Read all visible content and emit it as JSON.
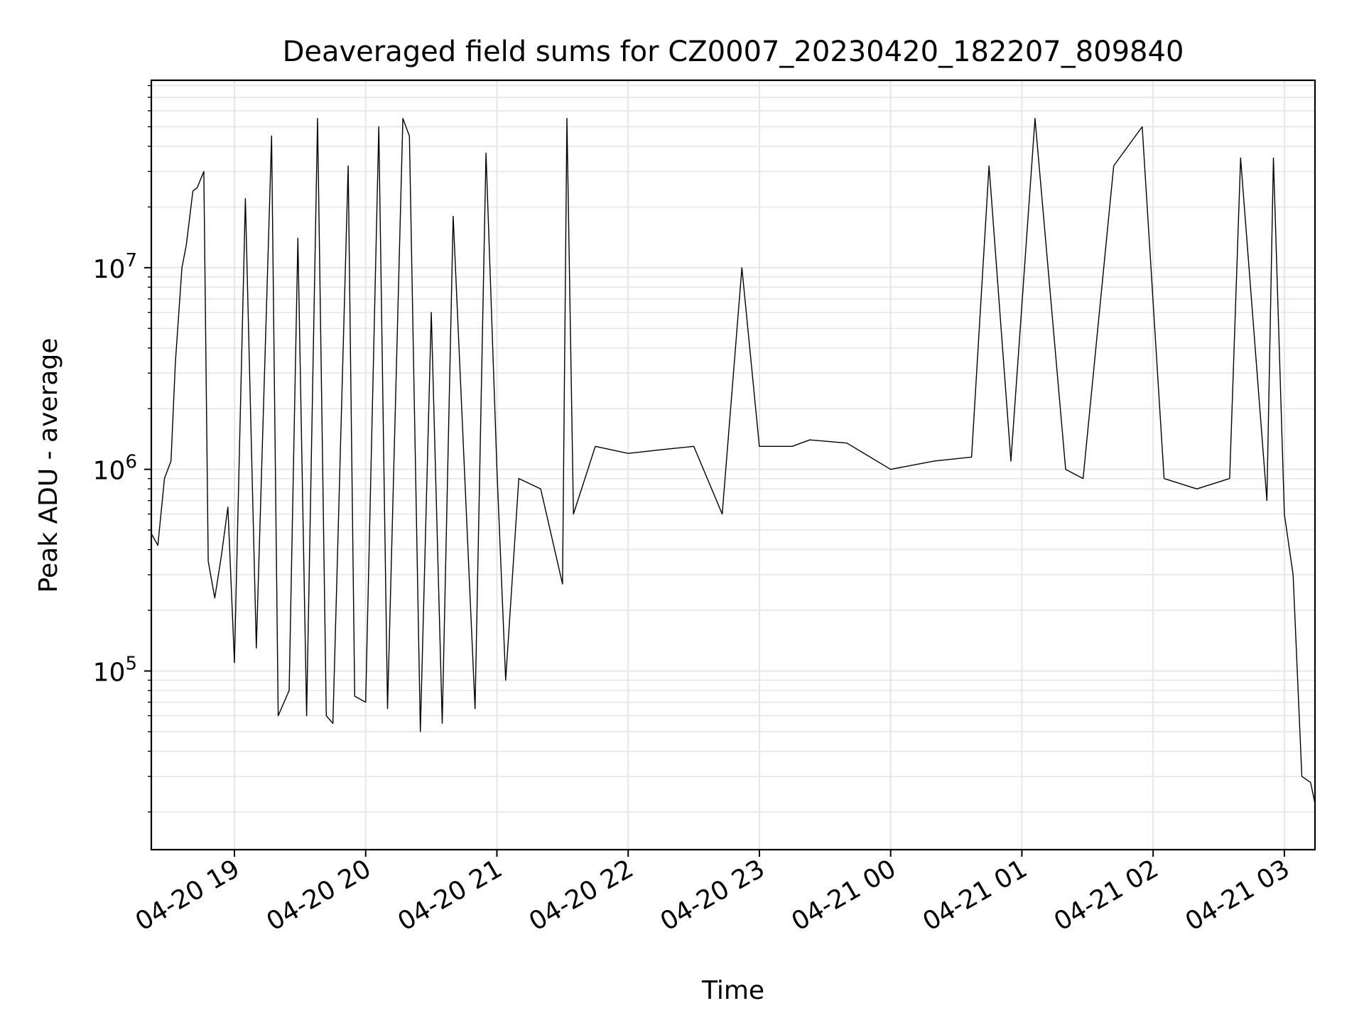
{
  "chart_data": {
    "type": "line",
    "title": "Deaveraged field sums for CZ0007_20230420_182207_809840",
    "xlabel": "Time",
    "ylabel": "Peak ADU - average",
    "y_scale": "log",
    "grid": true,
    "legend": "none",
    "line_color": "#000000",
    "xlim": [
      "2023-04-20 18:22",
      "2023-04-21 03:14"
    ],
    "ylim": [
      13000,
      85000000
    ],
    "x_ticks": [
      {
        "time": "2023-04-20 19:00",
        "label": "04-20 19"
      },
      {
        "time": "2023-04-20 20:00",
        "label": "04-20 20"
      },
      {
        "time": "2023-04-20 21:00",
        "label": "04-20 21"
      },
      {
        "time": "2023-04-20 22:00",
        "label": "04-20 22"
      },
      {
        "time": "2023-04-20 23:00",
        "label": "04-20 23"
      },
      {
        "time": "2023-04-21 00:00",
        "label": "04-21 00"
      },
      {
        "time": "2023-04-21 01:00",
        "label": "04-21 01"
      },
      {
        "time": "2023-04-21 02:00",
        "label": "04-21 02"
      },
      {
        "time": "2023-04-21 03:00",
        "label": "04-21 03"
      }
    ],
    "y_ticks": [
      {
        "value": 100000,
        "base": "10",
        "exp": "5"
      },
      {
        "value": 1000000,
        "base": "10",
        "exp": "6"
      },
      {
        "value": 10000000,
        "base": "10",
        "exp": "7"
      }
    ],
    "series": [
      {
        "x": [
          "2023-04-20 18:22",
          "2023-04-20 18:25",
          "2023-04-20 18:28",
          "2023-04-20 18:31",
          "2023-04-20 18:33",
          "2023-04-20 18:36",
          "2023-04-20 18:38",
          "2023-04-20 18:41",
          "2023-04-20 18:43",
          "2023-04-20 18:46",
          "2023-04-20 18:48",
          "2023-04-20 18:51",
          "2023-04-20 18:54",
          "2023-04-20 18:57",
          "2023-04-20 19:00",
          "2023-04-20 19:05",
          "2023-04-20 19:10",
          "2023-04-20 19:17",
          "2023-04-20 19:20",
          "2023-04-20 19:25",
          "2023-04-20 19:29",
          "2023-04-20 19:33",
          "2023-04-20 19:38",
          "2023-04-20 19:42",
          "2023-04-20 19:45",
          "2023-04-20 19:52",
          "2023-04-20 19:55",
          "2023-04-20 20:00",
          "2023-04-20 20:06",
          "2023-04-20 20:10",
          "2023-04-20 20:17",
          "2023-04-20 20:20",
          "2023-04-20 20:25",
          "2023-04-20 20:30",
          "2023-04-20 20:35",
          "2023-04-20 20:40",
          "2023-04-20 20:50",
          "2023-04-20 20:55",
          "2023-04-20 21:00",
          "2023-04-20 21:04",
          "2023-04-20 21:10",
          "2023-04-20 21:20",
          "2023-04-20 21:30",
          "2023-04-20 21:32",
          "2023-04-20 21:35",
          "2023-04-20 21:45",
          "2023-04-20 22:00",
          "2023-04-20 22:15",
          "2023-04-20 22:30",
          "2023-04-20 22:43",
          "2023-04-20 22:52",
          "2023-04-20 23:00",
          "2023-04-20 23:15",
          "2023-04-20 23:23",
          "2023-04-20 23:40",
          "2023-04-21 00:00",
          "2023-04-21 00:20",
          "2023-04-21 00:37",
          "2023-04-21 00:45",
          "2023-04-21 00:55",
          "2023-04-21 01:06",
          "2023-04-21 01:20",
          "2023-04-21 01:28",
          "2023-04-21 01:42",
          "2023-04-21 01:55",
          "2023-04-21 02:05",
          "2023-04-21 02:20",
          "2023-04-21 02:35",
          "2023-04-21 02:40",
          "2023-04-21 02:52",
          "2023-04-21 02:55",
          "2023-04-21 03:00",
          "2023-04-21 03:04",
          "2023-04-21 03:08",
          "2023-04-21 03:12",
          "2023-04-21 03:14"
        ],
        "y": [
          480000,
          420000,
          900000,
          1100000,
          3400000,
          10000000,
          13000000,
          24000000,
          25000000,
          30000000,
          350000,
          230000,
          370000,
          650000,
          110000,
          22000000,
          130000,
          45000000,
          60000,
          80000,
          14000000,
          60000,
          55000000,
          60000,
          55000,
          32000000,
          75000,
          70000,
          50000000,
          65000,
          55000000,
          45000000,
          50000,
          6000000,
          55000,
          18000000,
          65000,
          37000000,
          1000000,
          90000,
          900000,
          800000,
          270000,
          55000000,
          600000,
          1300000,
          1200000,
          1250000,
          1300000,
          600000,
          10000000,
          1300000,
          1300000,
          1400000,
          1350000,
          1000000,
          1100000,
          1150000,
          32000000,
          1100000,
          55000000,
          1000000,
          900000,
          32000000,
          50000000,
          900000,
          800000,
          900000,
          35000000,
          700000,
          35000000,
          600000,
          300000,
          30000,
          28000,
          22000
        ]
      }
    ]
  }
}
